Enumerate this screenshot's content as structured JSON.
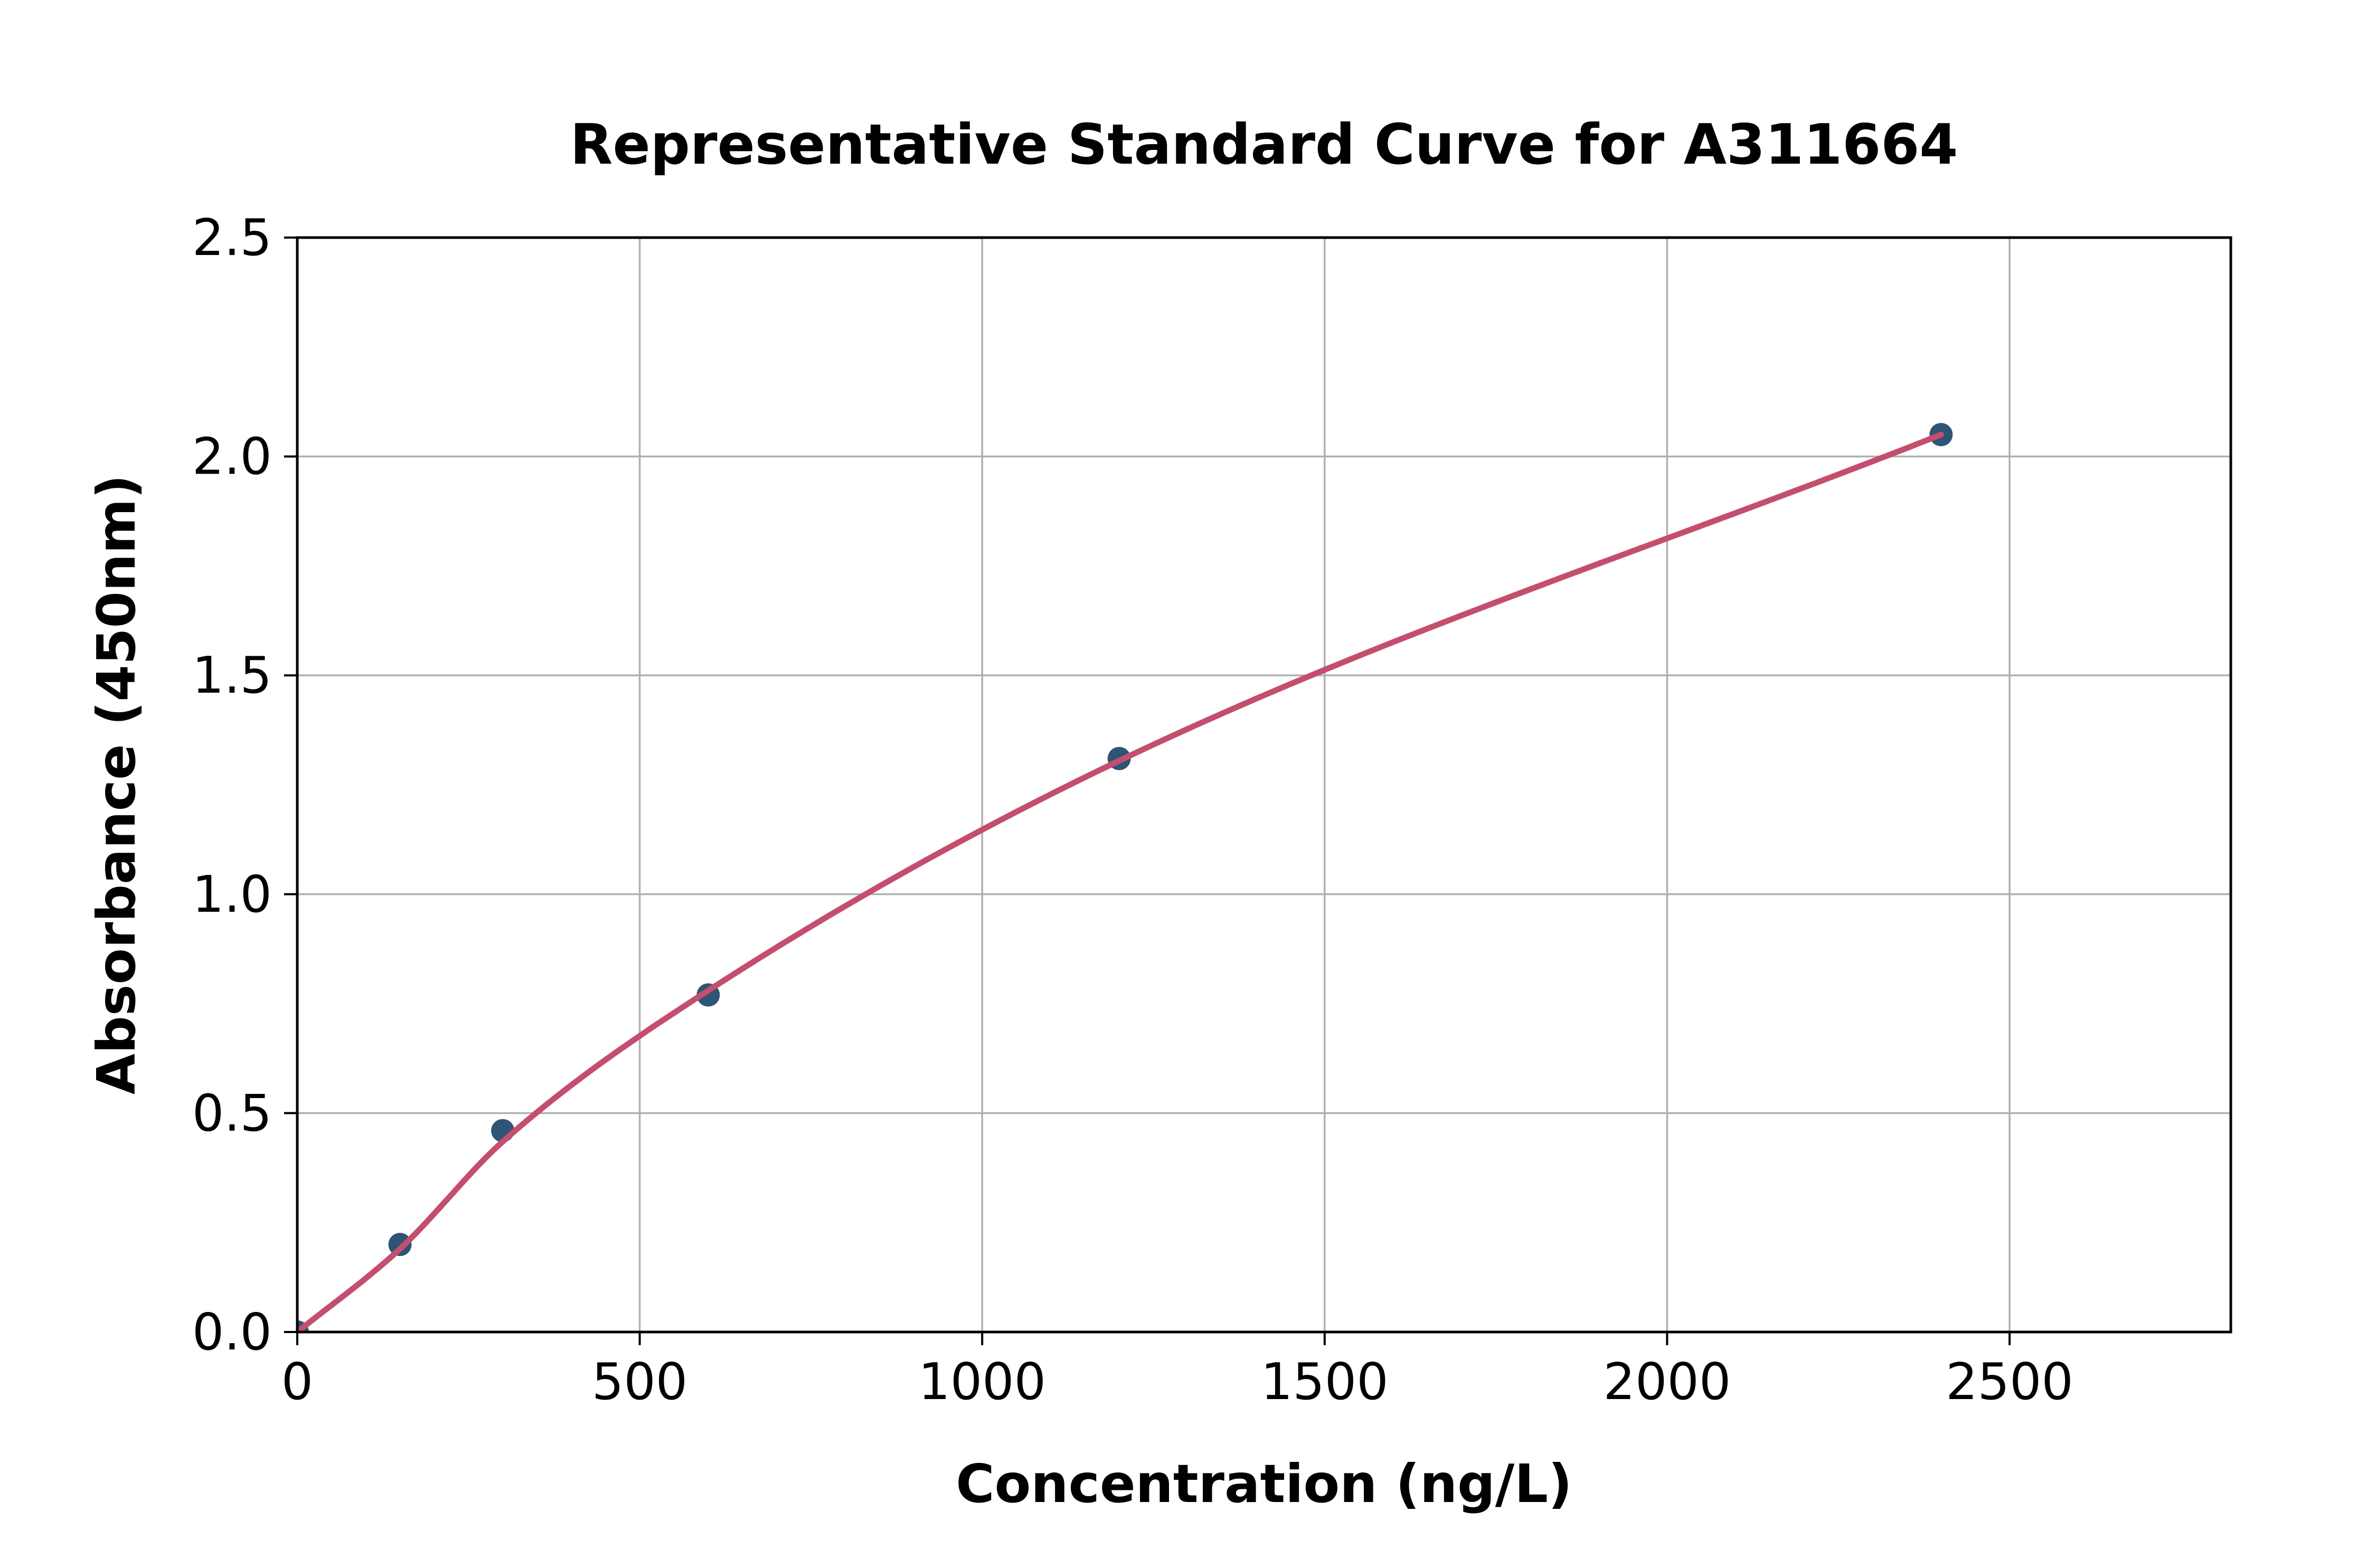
{
  "chart_data": {
    "type": "scatter",
    "title": "Representative Standard Curve for A311664",
    "xlabel": "Concentration (ng/L)",
    "ylabel": "Absorbance (450nm)",
    "xlim": [
      0,
      2823
    ],
    "ylim": [
      0,
      2.5
    ],
    "x_ticks": [
      0,
      500,
      1000,
      1500,
      2000,
      2500
    ],
    "x_tick_labels": [
      "0",
      "500",
      "1000",
      "1500",
      "2000",
      "2500"
    ],
    "y_ticks": [
      0.0,
      0.5,
      1.0,
      1.5,
      2.0,
      2.5
    ],
    "y_tick_labels": [
      "0.0",
      "0.5",
      "1.0",
      "1.5",
      "2.0",
      "2.5"
    ],
    "grid": true,
    "legend_position": "none",
    "series": [
      {
        "name": "standard-points",
        "kind": "scatter",
        "color": "#2e5476",
        "points": [
          [
            0,
            0.0
          ],
          [
            150,
            0.2
          ],
          [
            300,
            0.46
          ],
          [
            600,
            0.77
          ],
          [
            1200,
            1.31
          ],
          [
            2400,
            2.05
          ]
        ]
      },
      {
        "name": "fitted-curve",
        "kind": "line",
        "color": "#c44e6e",
        "points": [
          [
            0,
            0.0
          ],
          [
            150,
            0.19
          ],
          [
            300,
            0.435
          ],
          [
            600,
            0.78
          ],
          [
            1200,
            1.305
          ],
          [
            2400,
            2.05
          ]
        ]
      }
    ],
    "colors": {
      "background": "#ffffff",
      "grid": "#b0b0b0",
      "axis": "#000000",
      "text": "#000000",
      "marker": "#2e5476",
      "curve": "#c44e6e"
    }
  }
}
